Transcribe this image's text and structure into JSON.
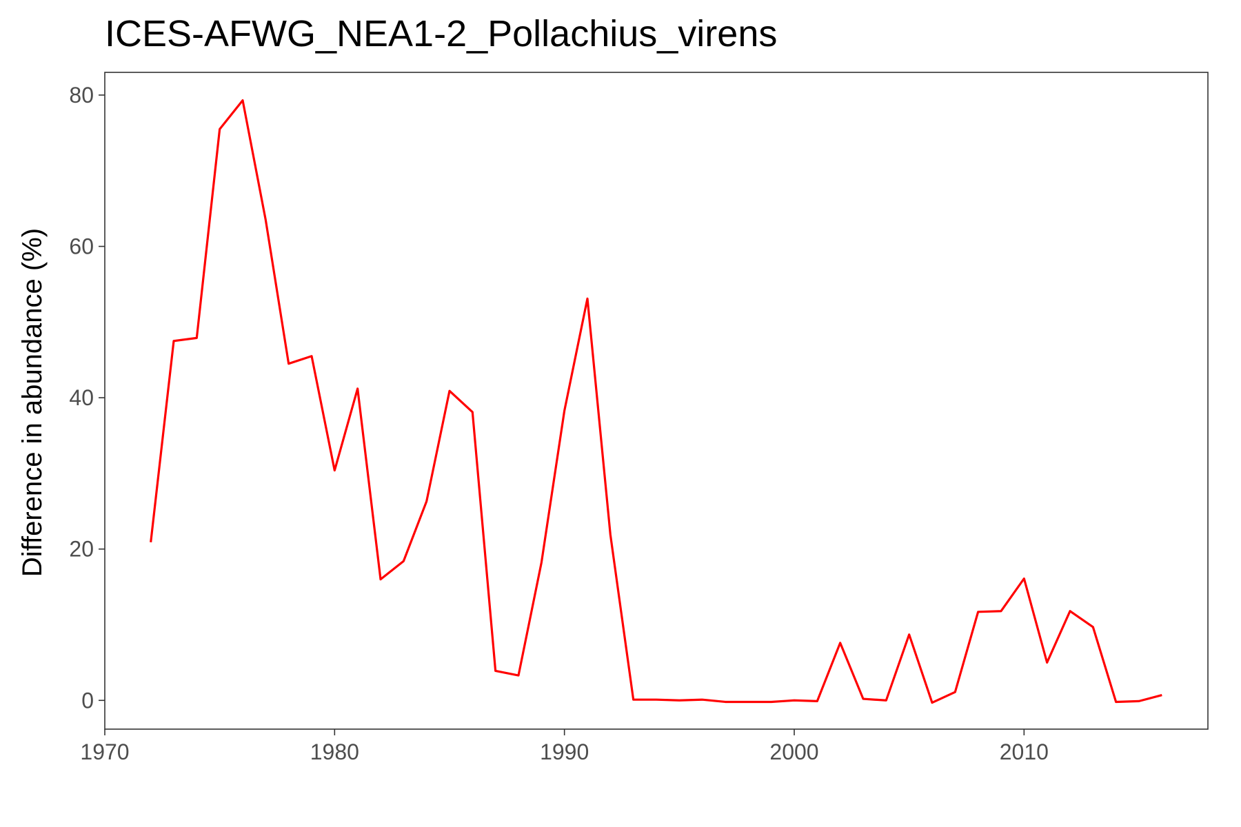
{
  "chart_data": {
    "type": "line",
    "title": "ICES-AFWG_NEA1-2_Pollachius_virens",
    "xlabel": "",
    "ylabel": "Difference in abundance (%)",
    "xlim": [
      1970,
      2018
    ],
    "ylim": [
      -3.8,
      83
    ],
    "x_ticks": [
      1970,
      1980,
      1990,
      2000,
      2010
    ],
    "y_ticks": [
      0,
      20,
      40,
      60,
      80
    ],
    "x_tick_labels": [
      "1970",
      "1980",
      "1990",
      "2000",
      "2010"
    ],
    "y_tick_labels": [
      "0",
      "20",
      "40",
      "60",
      "80"
    ],
    "grid": false,
    "legend": "none",
    "series": [
      {
        "color": "#ff0000",
        "x": [
          1972,
          1973,
          1974,
          1975,
          1976,
          1977,
          1978,
          1979,
          1980,
          1981,
          1982,
          1983,
          1984,
          1985,
          1986,
          1987,
          1988,
          1989,
          1990,
          1991,
          1992,
          1993,
          1994,
          1995,
          1996,
          1997,
          1998,
          1999,
          2000,
          2001,
          2002,
          2003,
          2004,
          2005,
          2006,
          2007,
          2008,
          2009,
          2010,
          2011,
          2012,
          2013,
          2014,
          2015,
          2016
        ],
        "y": [
          20.9,
          47.5,
          47.9,
          75.5,
          79.3,
          63.5,
          44.5,
          45.5,
          30.4,
          41.2,
          16.0,
          18.4,
          26.3,
          40.9,
          38.1,
          3.9,
          3.3,
          18.2,
          38.3,
          53.1,
          21.9,
          0.1,
          0.1,
          0.0,
          0.1,
          -0.2,
          -0.2,
          -0.2,
          0.0,
          -0.1,
          7.6,
          0.2,
          0.0,
          8.7,
          -0.3,
          1.1,
          11.7,
          11.8,
          16.1,
          5.0,
          11.8,
          9.7,
          -0.2,
          -0.1,
          0.7
        ]
      }
    ]
  }
}
